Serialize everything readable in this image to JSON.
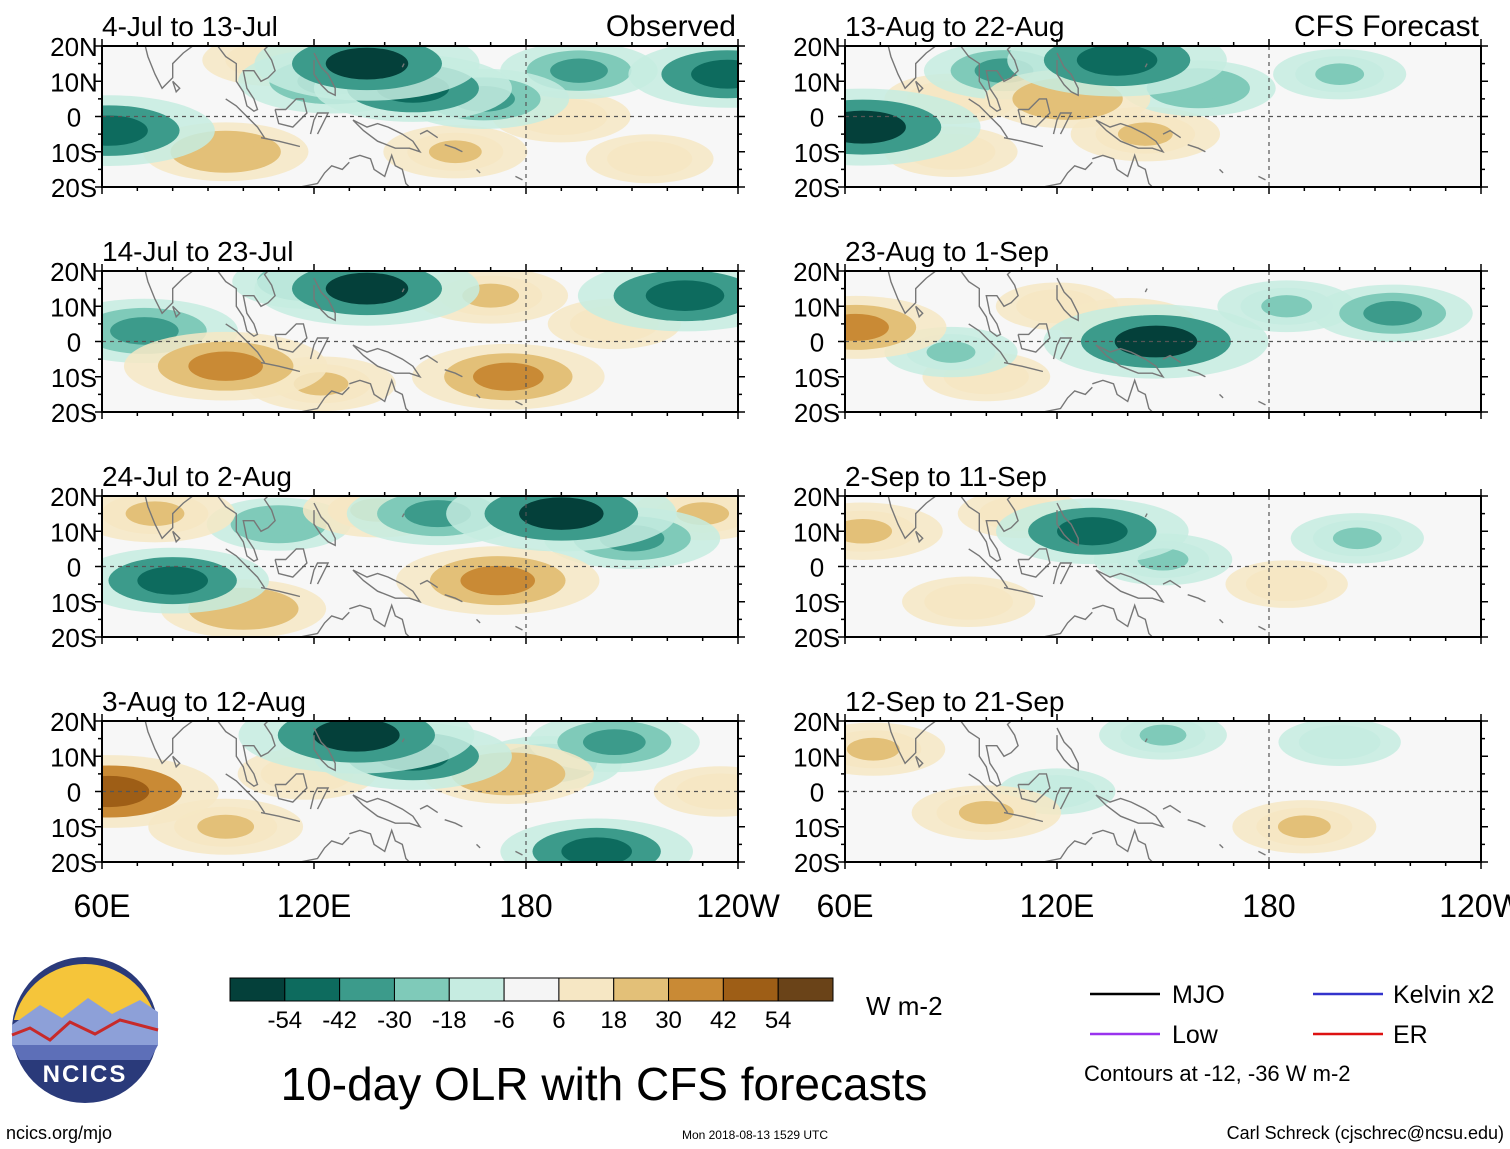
{
  "chart_data": {
    "type": "heatmap",
    "variable": "OLR anomaly",
    "title": "10-day OLR with CFS forecasts",
    "units": "W m-2",
    "x_ticks": [
      "60E",
      "120E",
      "180",
      "120W"
    ],
    "y_ticks": [
      "20N",
      "10N",
      "0",
      "10S",
      "20S"
    ],
    "lon_range": [
      60,
      240
    ],
    "lat_range": [
      -20,
      20
    ],
    "colorbar": {
      "labels": [
        "-54",
        "-42",
        "-30",
        "-18",
        "-6",
        "6",
        "18",
        "30",
        "42",
        "54"
      ],
      "colors": [
        "#04403a",
        "#0d6b5e",
        "#3c9b8b",
        "#7fcab9",
        "#c6ece1",
        "#f5f5f5",
        "#f6e7c4",
        "#e3c078",
        "#c98a35",
        "#9e5e16",
        "#6a4318"
      ]
    },
    "legend": [
      {
        "name": "MJO",
        "color": "#000000"
      },
      {
        "name": "Kelvin x2",
        "color": "#3333cc"
      },
      {
        "name": "Low",
        "color": "#9933ee"
      },
      {
        "name": "ER",
        "color": "#dd1111"
      }
    ],
    "contours_note": "Contours at -12, -36 W m-2",
    "column_labels": {
      "observed": "Observed",
      "forecast": "CFS Forecast"
    },
    "panels": [
      {
        "label": "4-Jul to 13-Jul",
        "column": "observed",
        "row": 0
      },
      {
        "label": "14-Jul to 23-Jul",
        "column": "observed",
        "row": 1
      },
      {
        "label": "24-Jul to 2-Aug",
        "column": "observed",
        "row": 2
      },
      {
        "label": "3-Aug to 12-Aug",
        "column": "observed",
        "row": 3
      },
      {
        "label": "13-Aug to 22-Aug",
        "column": "forecast",
        "row": 0
      },
      {
        "label": "23-Aug to 1-Sep",
        "column": "forecast",
        "row": 1
      },
      {
        "label": "2-Sep to 11-Sep",
        "column": "forecast",
        "row": 2
      },
      {
        "label": "12-Sep to 21-Sep",
        "column": "forecast",
        "row": 3
      }
    ],
    "anomaly_blobs": [
      [
        {
          "lon": 135,
          "lat": 15,
          "v": -50
        },
        {
          "lon": 148,
          "lat": 8,
          "v": -40
        },
        {
          "lon": 125,
          "lat": 10,
          "v": -36
        },
        {
          "lon": 62,
          "lat": -4,
          "v": -45
        },
        {
          "lon": 168,
          "lat": 5,
          "v": -30
        },
        {
          "lon": 237,
          "lat": 12,
          "v": -40
        },
        {
          "lon": 195,
          "lat": 13,
          "v": -25
        },
        {
          "lon": 95,
          "lat": -10,
          "v": 28
        },
        {
          "lon": 190,
          "lat": 0,
          "v": 18
        },
        {
          "lon": 160,
          "lat": -10,
          "v": 20
        },
        {
          "lon": 215,
          "lat": -12,
          "v": 14
        },
        {
          "lon": 108,
          "lat": 16,
          "v": 18
        }
      ],
      [
        {
          "lon": 135,
          "lat": 15,
          "v": -50
        },
        {
          "lon": 225,
          "lat": 13,
          "v": -46
        },
        {
          "lon": 72,
          "lat": 3,
          "v": -36
        },
        {
          "lon": 118,
          "lat": 17,
          "v": -22
        },
        {
          "lon": 95,
          "lat": -7,
          "v": 42
        },
        {
          "lon": 175,
          "lat": -10,
          "v": 38
        },
        {
          "lon": 170,
          "lat": 13,
          "v": 24
        },
        {
          "lon": 122,
          "lat": -12,
          "v": 22
        },
        {
          "lon": 205,
          "lat": 5,
          "v": 16
        }
      ],
      [
        {
          "lon": 80,
          "lat": -4,
          "v": -38
        },
        {
          "lon": 190,
          "lat": 15,
          "v": -52
        },
        {
          "lon": 210,
          "lat": 8,
          "v": -32
        },
        {
          "lon": 155,
          "lat": 15,
          "v": -34
        },
        {
          "lon": 110,
          "lat": 12,
          "v": -20
        },
        {
          "lon": 172,
          "lat": -4,
          "v": 42
        },
        {
          "lon": 75,
          "lat": 15,
          "v": 26
        },
        {
          "lon": 100,
          "lat": -12,
          "v": 28
        },
        {
          "lon": 138,
          "lat": 16,
          "v": 22
        },
        {
          "lon": 230,
          "lat": 15,
          "v": 20
        }
      ],
      [
        {
          "lon": 132,
          "lat": 16,
          "v": -54
        },
        {
          "lon": 148,
          "lat": 10,
          "v": -40
        },
        {
          "lon": 205,
          "lat": 14,
          "v": -30
        },
        {
          "lon": 186,
          "lat": 8,
          "v": -22
        },
        {
          "lon": 200,
          "lat": -17,
          "v": -38
        },
        {
          "lon": 62,
          "lat": 0,
          "v": 48
        },
        {
          "lon": 175,
          "lat": 5,
          "v": 30
        },
        {
          "lon": 95,
          "lat": -10,
          "v": 24
        },
        {
          "lon": 118,
          "lat": 5,
          "v": 18
        },
        {
          "lon": 235,
          "lat": 0,
          "v": 16
        }
      ],
      [
        {
          "lon": 65,
          "lat": -3,
          "v": -54
        },
        {
          "lon": 137,
          "lat": 16,
          "v": -48
        },
        {
          "lon": 105,
          "lat": 13,
          "v": -26
        },
        {
          "lon": 160,
          "lat": 8,
          "v": -24
        },
        {
          "lon": 200,
          "lat": 12,
          "v": -16
        },
        {
          "lon": 123,
          "lat": 5,
          "v": 28
        },
        {
          "lon": 145,
          "lat": -5,
          "v": 22
        },
        {
          "lon": 90,
          "lat": -10,
          "v": 16
        },
        {
          "lon": 90,
          "lat": 5,
          "v": 16
        }
      ],
      [
        {
          "lon": 63,
          "lat": 4,
          "v": 34
        },
        {
          "lon": 140,
          "lat": 5,
          "v": 18
        },
        {
          "lon": 100,
          "lat": -10,
          "v": 14
        },
        {
          "lon": 148,
          "lat": 0,
          "v": -50
        },
        {
          "lon": 215,
          "lat": 8,
          "v": -26
        },
        {
          "lon": 185,
          "lat": 10,
          "v": -18
        },
        {
          "lon": 90,
          "lat": -3,
          "v": -16
        },
        {
          "lon": 120,
          "lat": 10,
          "v": 12
        }
      ],
      [
        {
          "lon": 65,
          "lat": 10,
          "v": 26
        },
        {
          "lon": 130,
          "lat": 10,
          "v": -38
        },
        {
          "lon": 150,
          "lat": 2,
          "v": -18
        },
        {
          "lon": 205,
          "lat": 8,
          "v": -16
        },
        {
          "lon": 95,
          "lat": -10,
          "v": 16
        },
        {
          "lon": 185,
          "lat": -5,
          "v": 12
        },
        {
          "lon": 110,
          "lat": 15,
          "v": 14
        }
      ],
      [
        {
          "lon": 68,
          "lat": 12,
          "v": 20
        },
        {
          "lon": 100,
          "lat": -6,
          "v": 22
        },
        {
          "lon": 190,
          "lat": -10,
          "v": 20
        },
        {
          "lon": 150,
          "lat": 16,
          "v": -14
        },
        {
          "lon": 200,
          "lat": 14,
          "v": -12
        },
        {
          "lon": 120,
          "lat": 0,
          "v": -10
        }
      ]
    ]
  },
  "branding": {
    "logo_text": "NCICS",
    "url": "ncics.org/mjo",
    "timestamp": "Mon 2018-08-13 1529 UTC",
    "credit": "Carl Schreck (cjschrec@ncsu.edu)"
  }
}
